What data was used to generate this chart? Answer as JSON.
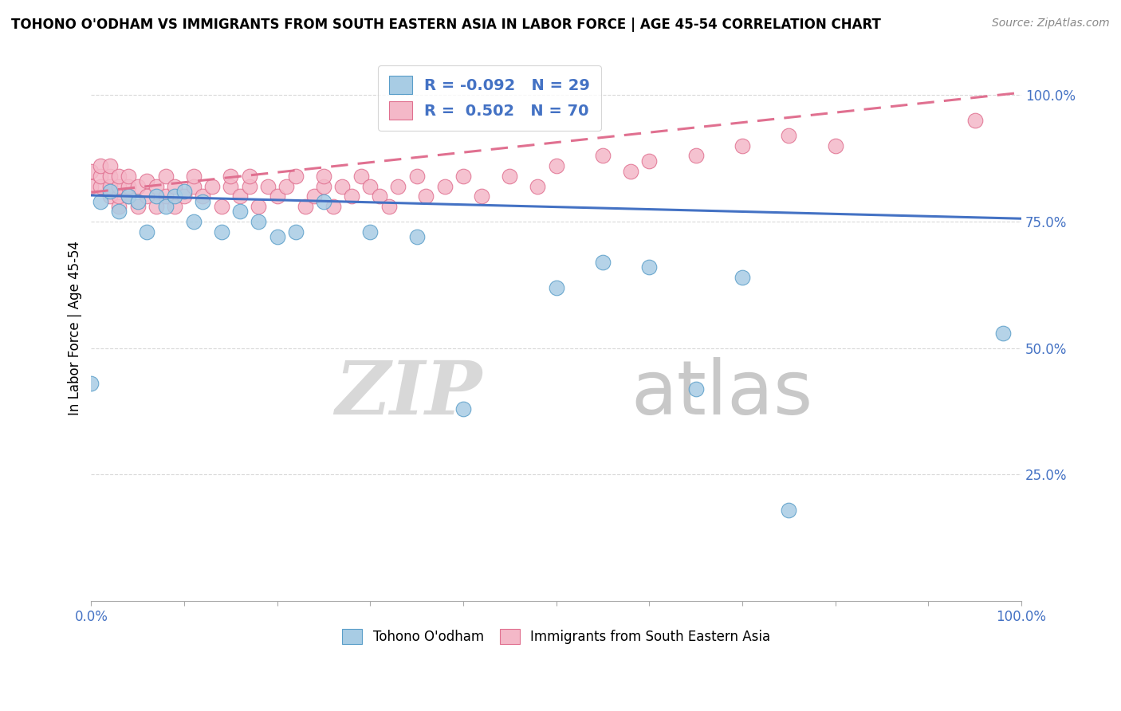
{
  "title": "TOHONO O'ODHAM VS IMMIGRANTS FROM SOUTH EASTERN ASIA IN LABOR FORCE | AGE 45-54 CORRELATION CHART",
  "source": "Source: ZipAtlas.com",
  "ylabel": "In Labor Force | Age 45-54",
  "xlim": [
    0.0,
    1.0
  ],
  "ylim": [
    0.0,
    1.08
  ],
  "blue_R": -0.092,
  "blue_N": 29,
  "pink_R": 0.502,
  "pink_N": 70,
  "blue_color": "#a8cce4",
  "pink_color": "#f4b8c8",
  "blue_edge_color": "#5a9ec9",
  "pink_edge_color": "#e07090",
  "blue_line_color": "#4472c4",
  "pink_line_color": "#e07090",
  "legend_label_blue": "Tohono O'odham",
  "legend_label_pink": "Immigrants from South Eastern Asia",
  "watermark_zip": "ZIP",
  "watermark_atlas": "atlas",
  "blue_scatter_x": [
    0.0,
    0.01,
    0.02,
    0.03,
    0.04,
    0.05,
    0.06,
    0.07,
    0.08,
    0.09,
    0.1,
    0.11,
    0.12,
    0.14,
    0.16,
    0.18,
    0.2,
    0.22,
    0.25,
    0.3,
    0.35,
    0.4,
    0.5,
    0.55,
    0.6,
    0.65,
    0.7,
    0.75,
    0.98
  ],
  "blue_scatter_y": [
    0.43,
    0.79,
    0.81,
    0.77,
    0.8,
    0.79,
    0.73,
    0.8,
    0.78,
    0.8,
    0.81,
    0.75,
    0.79,
    0.73,
    0.77,
    0.75,
    0.72,
    0.73,
    0.79,
    0.73,
    0.72,
    0.38,
    0.62,
    0.67,
    0.66,
    0.42,
    0.64,
    0.18,
    0.53
  ],
  "pink_scatter_x": [
    0.0,
    0.0,
    0.01,
    0.01,
    0.01,
    0.02,
    0.02,
    0.02,
    0.02,
    0.03,
    0.03,
    0.03,
    0.03,
    0.04,
    0.04,
    0.04,
    0.05,
    0.05,
    0.06,
    0.06,
    0.07,
    0.07,
    0.08,
    0.08,
    0.09,
    0.09,
    0.1,
    0.11,
    0.11,
    0.12,
    0.13,
    0.14,
    0.15,
    0.15,
    0.16,
    0.17,
    0.17,
    0.18,
    0.19,
    0.2,
    0.21,
    0.22,
    0.23,
    0.24,
    0.25,
    0.25,
    0.26,
    0.27,
    0.28,
    0.29,
    0.3,
    0.31,
    0.32,
    0.33,
    0.35,
    0.36,
    0.38,
    0.4,
    0.42,
    0.45,
    0.48,
    0.5,
    0.55,
    0.58,
    0.6,
    0.65,
    0.7,
    0.75,
    0.8,
    0.95
  ],
  "pink_scatter_y": [
    0.82,
    0.85,
    0.82,
    0.84,
    0.86,
    0.8,
    0.82,
    0.84,
    0.86,
    0.78,
    0.8,
    0.82,
    0.84,
    0.8,
    0.82,
    0.84,
    0.78,
    0.82,
    0.8,
    0.83,
    0.78,
    0.82,
    0.8,
    0.84,
    0.78,
    0.82,
    0.8,
    0.82,
    0.84,
    0.8,
    0.82,
    0.78,
    0.82,
    0.84,
    0.8,
    0.82,
    0.84,
    0.78,
    0.82,
    0.8,
    0.82,
    0.84,
    0.78,
    0.8,
    0.82,
    0.84,
    0.78,
    0.82,
    0.8,
    0.84,
    0.82,
    0.8,
    0.78,
    0.82,
    0.84,
    0.8,
    0.82,
    0.84,
    0.8,
    0.84,
    0.82,
    0.86,
    0.88,
    0.85,
    0.87,
    0.88,
    0.9,
    0.92,
    0.9,
    0.95
  ],
  "blue_trend_x0": 0.0,
  "blue_trend_x1": 1.0,
  "blue_trend_y0": 0.802,
  "blue_trend_y1": 0.756,
  "pink_trend_x0": 0.0,
  "pink_trend_x1": 1.0,
  "pink_trend_y0": 0.808,
  "pink_trend_y1": 1.005,
  "ytick_positions": [
    0.25,
    0.5,
    0.75,
    1.0
  ],
  "ytick_labels": [
    "25.0%",
    "50.0%",
    "75.0%",
    "100.0%"
  ],
  "tick_color": "#4472c4",
  "title_fontsize": 12,
  "axis_fontsize": 12,
  "legend_fontsize": 14
}
